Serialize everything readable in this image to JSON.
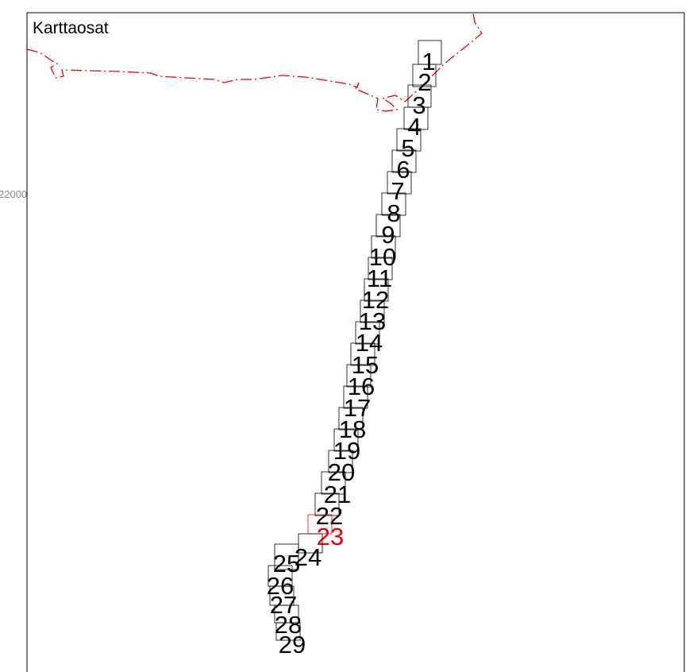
{
  "map": {
    "title": "Karttaosat",
    "coordinate_label": "22000",
    "selected_part": "23",
    "colors": {
      "selected": "#e8000a",
      "border": "#e8000a",
      "default": "#000000"
    }
  },
  "parts": [
    "1",
    "2",
    "3",
    "4",
    "5",
    "6",
    "7",
    "8",
    "9",
    "10",
    "11",
    "12",
    "13",
    "14",
    "15",
    "16",
    "17",
    "18",
    "19",
    "20",
    "21",
    "22",
    "23",
    "24",
    "25",
    "26",
    "27",
    "28",
    "29"
  ]
}
